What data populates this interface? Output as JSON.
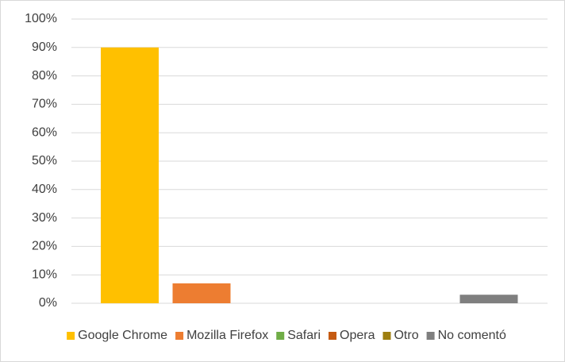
{
  "chart_data": {
    "type": "bar",
    "series": [
      {
        "name": "Google Chrome",
        "color": "#ffc000",
        "values": [
          90
        ]
      },
      {
        "name": "Mozilla Firefox",
        "color": "#ed7d31",
        "values": [
          7
        ]
      },
      {
        "name": "Safari",
        "color": "#70ad47",
        "values": [
          0
        ]
      },
      {
        "name": "Opera",
        "color": "#c55a11",
        "values": [
          0
        ]
      },
      {
        "name": "Otro",
        "color": "#9e7f10",
        "values": [
          0
        ]
      },
      {
        "name": "No comentó",
        "color": "#7f7f7f",
        "values": [
          3
        ]
      }
    ],
    "ylim": [
      0,
      100
    ],
    "yticks": [
      {
        "value": 0,
        "label": "0%"
      },
      {
        "value": 10,
        "label": "10%"
      },
      {
        "value": 20,
        "label": "20%"
      },
      {
        "value": 30,
        "label": "30%"
      },
      {
        "value": 40,
        "label": "40%"
      },
      {
        "value": 50,
        "label": "50%"
      },
      {
        "value": 60,
        "label": "60%"
      },
      {
        "value": 70,
        "label": "70%"
      },
      {
        "value": 80,
        "label": "80%"
      },
      {
        "value": 90,
        "label": "90%"
      },
      {
        "value": 100,
        "label": "100%"
      }
    ],
    "grid": true,
    "legend": "bottom"
  }
}
